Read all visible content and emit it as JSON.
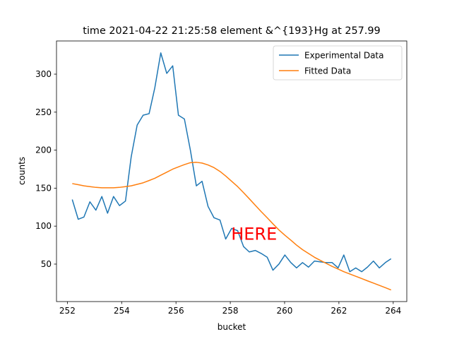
{
  "chart_data": {
    "type": "line",
    "title": "time 2021-04-22 21:25:58 element &^{193}Hg at 257.99",
    "xlabel": "bucket",
    "ylabel": "counts",
    "x": [
      252.18,
      252.4,
      252.61,
      252.83,
      253.05,
      253.27,
      253.48,
      253.7,
      253.92,
      254.14,
      254.35,
      254.57,
      254.79,
      255.01,
      255.22,
      255.44,
      255.66,
      255.88,
      256.09,
      256.31,
      256.53,
      256.75,
      256.96,
      257.18,
      257.4,
      257.62,
      257.83,
      258.05,
      258.27,
      258.49,
      258.7,
      258.92,
      259.14,
      259.36,
      259.57,
      259.79,
      260.01,
      260.23,
      260.44,
      260.66,
      260.88,
      261.1,
      261.31,
      261.53,
      261.75,
      261.97,
      262.18,
      262.4,
      262.62,
      262.84,
      263.05,
      263.27,
      263.49,
      263.71,
      263.92
    ],
    "series": [
      {
        "name": "Experimental Data",
        "color": "#1f77b4",
        "values": [
          135,
          109,
          112,
          132,
          121,
          139,
          117,
          139,
          127,
          133,
          191,
          233,
          246,
          248,
          282,
          328,
          301,
          311,
          246,
          241,
          200,
          153,
          159,
          126,
          111,
          108,
          83,
          97,
          94,
          73,
          66,
          68,
          64,
          59,
          42,
          50,
          62,
          52,
          45,
          52,
          46,
          54,
          53,
          52,
          52,
          45,
          62,
          40,
          45,
          40,
          46,
          54,
          45,
          52,
          57
        ]
      },
      {
        "name": "Fitted Data",
        "color": "#ff7f0e",
        "values": [
          156,
          154.5,
          153,
          152,
          151,
          150.5,
          150.5,
          150.5,
          151,
          152,
          153,
          155,
          157,
          160,
          163,
          167,
          171,
          175,
          178,
          181,
          183.5,
          184,
          183,
          180.5,
          177,
          172,
          166,
          159,
          152,
          144,
          136,
          127.5,
          119,
          111,
          103,
          95,
          88,
          81.5,
          75,
          69,
          64,
          59,
          55,
          51,
          47,
          43.5,
          40,
          37,
          34,
          31,
          28,
          25,
          22,
          19,
          16
        ]
      }
    ],
    "xlim": [
      251.6,
      264.5
    ],
    "ylim": [
      0.7,
      343.7
    ],
    "xticks": [
      252,
      254,
      256,
      258,
      260,
      262,
      264
    ],
    "yticks": [
      50,
      100,
      150,
      200,
      250,
      300
    ],
    "legend": "upper right",
    "annotation": {
      "text": "HERE",
      "x": 258.03,
      "y": 82,
      "color": "red"
    }
  }
}
